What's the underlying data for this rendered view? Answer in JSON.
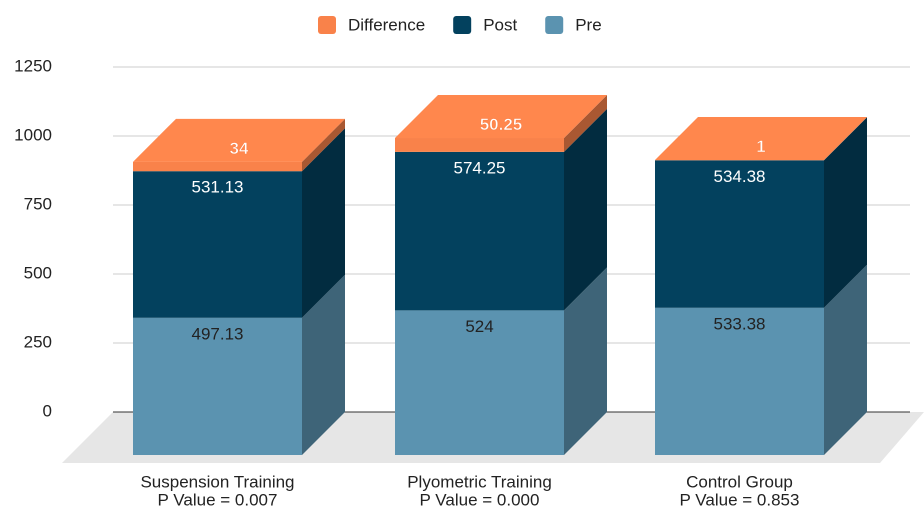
{
  "chart_data": {
    "type": "bar3d_stacked",
    "categories": [
      [
        "Suspension Training",
        "P Value = 0.007"
      ],
      [
        "Plyometric Training",
        "P Value = 0.000"
      ],
      [
        "Control Group",
        "P Value = 0.853"
      ]
    ],
    "series": [
      {
        "name": "Pre",
        "color": "#5b93b0",
        "values": [
          497.13,
          524,
          533.38
        ]
      },
      {
        "name": "Post",
        "color": "#03415e",
        "values": [
          531.13,
          574.25,
          534.38
        ]
      },
      {
        "name": "Difference",
        "color": "#f9824a",
        "values": [
          34,
          50.25,
          1
        ]
      }
    ],
    "ylim": [
      0,
      1250
    ],
    "yticks": [
      0,
      250,
      500,
      750,
      1000,
      1250
    ],
    "grid": true,
    "legend": "top"
  }
}
